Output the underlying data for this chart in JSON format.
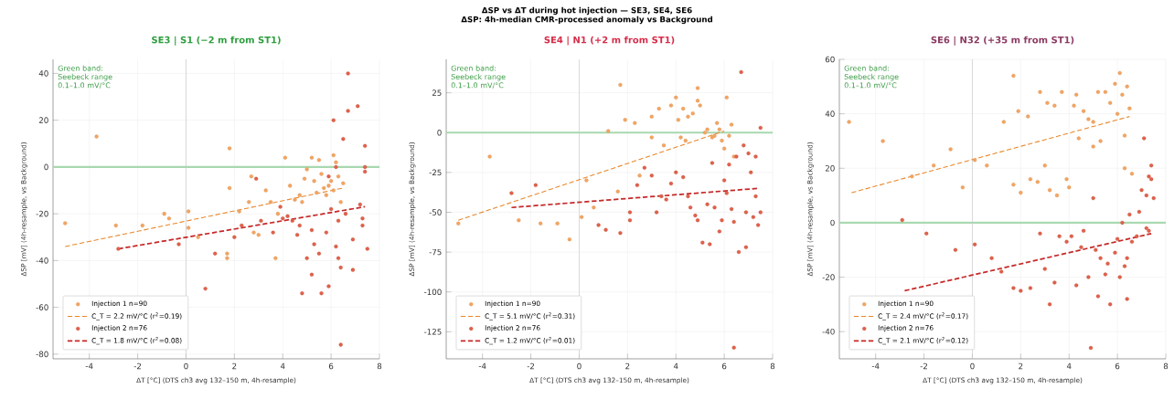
{
  "chart_data": [
    {
      "type": "scatter",
      "title": "SE3 | S1 (−2 m from ST1)",
      "xlabel": "ΔT [°C]  (DTS ch3 avg 132–150 m, 4h-resample)",
      "ylabel": "ΔSP [mV]  (4h-resample, vs Background)",
      "xlim": [
        -5.5,
        8
      ],
      "ylim": [
        -82,
        46
      ],
      "xticks": [
        -4,
        -2,
        0,
        2,
        4,
        6,
        8
      ],
      "yticks": [
        -80,
        -60,
        -40,
        -20,
        0,
        20,
        40
      ],
      "grid": true,
      "legend": "bottom left",
      "annotations": [
        "Green band: Seebeck range 0.1–1.0 mV/°C"
      ],
      "ref_lines": [
        {
          "axis": "y",
          "value": 0,
          "color": "#a8d8b0"
        },
        {
          "axis": "x",
          "value": 0,
          "color": "#c8c8c8"
        }
      ],
      "series": [
        {
          "name": "Injection 1  n=90",
          "marker": "circle",
          "color": "#f4a460",
          "x": [
            -5,
            -3.7,
            -2.9,
            -1.8,
            -0.9,
            -0.7,
            0.1,
            0.1,
            0.5,
            1.7,
            1.7,
            1.8,
            1.8,
            2.2,
            2.6,
            2.7,
            2.8,
            3.0,
            3.3,
            3.5,
            3.8,
            4.1,
            4.3,
            4.5,
            4.7,
            4.9,
            5.0,
            5.2,
            5.3,
            5.5,
            5.6,
            5.7,
            5.8,
            5.9,
            6.0,
            6.1,
            6.1,
            6.2,
            6.3,
            6.4,
            6.5,
            5.4,
            4.8,
            3.7
          ],
          "values": [
            -24,
            13,
            -25,
            -25,
            -20,
            -22,
            -19,
            -26,
            -30,
            -37,
            -39,
            8,
            -9,
            -19,
            -15,
            -4,
            -28,
            -29,
            -10,
            -15,
            -20,
            4,
            -8,
            -14,
            -12,
            -5,
            -1,
            4,
            -6,
            3,
            -3,
            -9,
            -12,
            -8,
            -6,
            5,
            -10,
            2,
            -4,
            -15,
            -7,
            -11,
            -15,
            -39
          ]
        },
        {
          "name": "C_T = 2.2 mV/°C  (r$^{2}$=0.19)",
          "type": "line",
          "color": "#e8862a",
          "line_style": "dashed",
          "x": [
            -5,
            6.5
          ],
          "values": [
            -34,
            -9
          ]
        },
        {
          "name": "Injection 2  n=76",
          "marker": "circle",
          "color": "#e0604a",
          "x": [
            -2.8,
            -0.3,
            0.8,
            1.2,
            2.0,
            2.3,
            2.9,
            3.1,
            3.6,
            3.9,
            4.0,
            4.2,
            4.4,
            4.6,
            4.7,
            4.8,
            5.0,
            5.2,
            5.2,
            5.3,
            5.5,
            5.6,
            5.8,
            5.9,
            6.0,
            6.1,
            6.2,
            6.3,
            6.4,
            6.4,
            6.5,
            6.6,
            6.7,
            6.7,
            6.9,
            6.9,
            7.1,
            7.2,
            7.3,
            7.4,
            7.4,
            7.4,
            7.5,
            7.3,
            6.3,
            6.2,
            5.9
          ],
          "values": [
            -35,
            -33,
            -52,
            -37,
            -30,
            -25,
            -5,
            -23,
            -28,
            -17,
            -22,
            -21,
            -23,
            -29,
            -25,
            -54,
            -39,
            -46,
            -27,
            -33,
            -37,
            -54,
            -28,
            -51,
            -18,
            20,
            -34,
            -23,
            -43,
            -76,
            12,
            -20,
            24,
            40,
            -44,
            -31,
            26,
            -16,
            -22,
            9,
            0,
            -2,
            -35,
            -25,
            -39,
            0,
            -4
          ]
        },
        {
          "name": "C_T = 1.8 mV/°C  (r$^{2}$=0.08)",
          "type": "line",
          "color": "#c62828",
          "line_style": "dashed",
          "x": [
            -2.8,
            7.4
          ],
          "values": [
            -35,
            -17
          ]
        }
      ]
    },
    {
      "type": "scatter",
      "title": "SE4 | N1 (+2 m from ST1)",
      "xlabel": "ΔT [°C]  (DTS ch3 avg 132–150 m, 4h-resample)",
      "ylabel": "ΔSP [mV]  (4h-resample, vs Background)",
      "xlim": [
        -5.5,
        8
      ],
      "ylim": [
        -142,
        46
      ],
      "xticks": [
        -4,
        -2,
        0,
        2,
        4,
        6,
        8
      ],
      "yticks": [
        -125,
        -100,
        -75,
        -50,
        -25,
        0,
        25
      ],
      "grid": true,
      "legend": "bottom left",
      "annotations": [
        "ΔSP vs ΔT during hot injection — SE3, SE4, SE6",
        "ΔSP: 4h-median CMR-processed anomaly vs Background",
        "Green band: Seebeck range 0.1–1.0 mV/°C"
      ],
      "ref_lines": [
        {
          "axis": "y",
          "value": 0,
          "color": "#a8d8b0"
        },
        {
          "axis": "x",
          "value": 0,
          "color": "#c8c8c8"
        }
      ],
      "series": [
        {
          "name": "Injection 1  n=90",
          "marker": "circle",
          "color": "#f4a460",
          "x": [
            -5,
            -3.7,
            -2.5,
            -1.6,
            -0.9,
            -0.4,
            0.1,
            0.3,
            0.6,
            1.2,
            1.6,
            1.7,
            1.9,
            2.3,
            2.5,
            3.0,
            3.0,
            3.3,
            3.5,
            3.8,
            4.0,
            4.1,
            4.3,
            4.4,
            4.5,
            4.7,
            4.9,
            4.9,
            5.0,
            5.2,
            5.3,
            5.5,
            5.7,
            5.8,
            5.9,
            6.0,
            6.1,
            6.2,
            6.3,
            6.4,
            5.6,
            4.2
          ],
          "values": [
            -57,
            -15,
            -55,
            -57,
            -57,
            -67,
            -53,
            -30,
            -47,
            1,
            -37,
            30,
            8,
            6,
            -27,
            10,
            -3,
            15,
            -8,
            17,
            22,
            8,
            15,
            -5,
            10,
            12,
            28,
            20,
            17,
            0,
            2,
            -3,
            6,
            2,
            -5,
            -10,
            22,
            -2,
            5,
            -15,
            -2,
            -3
          ]
        },
        {
          "name": "C_T = 5.1 mV/°C  (r$^{2}$=0.31)",
          "type": "line",
          "color": "#e8862a",
          "line_style": "dashed",
          "x": [
            -5,
            6
          ],
          "values": [
            -55,
            1
          ]
        },
        {
          "name": "Injection 2  n=76",
          "marker": "circle",
          "color": "#e0604a",
          "x": [
            -2.8,
            -1.8,
            0.8,
            1.1,
            1.7,
            2.1,
            2.1,
            2.4,
            2.7,
            3.0,
            3.2,
            3.4,
            3.6,
            3.8,
            4.0,
            4.3,
            4.5,
            4.6,
            4.8,
            4.9,
            5.1,
            5.3,
            5.4,
            5.5,
            5.6,
            5.8,
            5.9,
            6.0,
            6.1,
            6.2,
            6.3,
            6.4,
            6.4,
            6.5,
            6.6,
            6.7,
            6.8,
            6.9,
            6.9,
            7.0,
            7.1,
            7.2,
            7.3,
            7.4,
            7.5,
            7.5,
            7.3
          ],
          "values": [
            -38,
            -33,
            -58,
            -61,
            -63,
            -50,
            -55,
            -33,
            -22,
            -27,
            -50,
            -40,
            -42,
            -32,
            -25,
            -28,
            -40,
            -47,
            -52,
            -55,
            -69,
            -45,
            -70,
            -19,
            -47,
            -62,
            -55,
            -30,
            -38,
            -20,
            -48,
            -135,
            -56,
            -15,
            -75,
            38,
            -8,
            -50,
            -72,
            -13,
            -25,
            -53,
            -15,
            -58,
            3,
            -50,
            -40
          ]
        },
        {
          "name": "C_T = 1.2 mV/°C  (r$^{2}$=0.01)",
          "type": "line",
          "color": "#c62828",
          "line_style": "dashed",
          "x": [
            -2.8,
            7.4
          ],
          "values": [
            -47,
            -35
          ]
        }
      ]
    },
    {
      "type": "scatter",
      "title": "SE6 | N32 (+35 m from ST1)",
      "xlabel": "ΔT [°C]  (DTS ch3 avg 132–150 m, 4h-resample)",
      "ylabel": "ΔSP [mV]  (4h-resample, vs Background)",
      "xlim": [
        -5.5,
        8
      ],
      "ylim": [
        -50,
        60
      ],
      "xticks": [
        -4,
        -2,
        0,
        2,
        4,
        6,
        8
      ],
      "yticks": [
        -40,
        -20,
        0,
        20,
        40,
        60
      ],
      "grid": true,
      "legend": "bottom left",
      "annotations": [
        "Green band: Seebeck range 0.1–1.0 mV/°C"
      ],
      "ref_lines": [
        {
          "axis": "y",
          "value": 0,
          "color": "#a8d8b0"
        },
        {
          "axis": "x",
          "value": 0,
          "color": "#c8c8c8"
        }
      ],
      "series": [
        {
          "name": "Injection 1  n=90",
          "marker": "circle",
          "color": "#f4a460",
          "x": [
            -5.1,
            -3.7,
            -2.5,
            -1.6,
            -0.9,
            -0.4,
            0.1,
            0.6,
            1.3,
            1.7,
            1.7,
            1.9,
            2.0,
            2.3,
            2.4,
            2.7,
            2.8,
            3.0,
            3.1,
            3.2,
            3.4,
            3.5,
            3.7,
            3.9,
            4.0,
            4.2,
            4.3,
            4.4,
            4.6,
            4.8,
            5.0,
            5.0,
            5.2,
            5.3,
            5.5,
            5.7,
            5.9,
            6.0,
            6.1,
            6.2,
            6.3,
            6.4,
            6.5,
            6.3,
            6.6
          ],
          "values": [
            37,
            30,
            17,
            21,
            27,
            13,
            23,
            21,
            37,
            14,
            54,
            41,
            11,
            39,
            16,
            15,
            48,
            21,
            44,
            12,
            43,
            10,
            48,
            16,
            13,
            43,
            47,
            31,
            41,
            38,
            37,
            28,
            48,
            30,
            48,
            44,
            51,
            40,
            55,
            47,
            32,
            50,
            42,
            20,
            18
          ]
        },
        {
          "name": "C_T = 2.4 mV/°C  (r$^{2}$=0.17)",
          "type": "line",
          "color": "#e8862a",
          "line_style": "dashed",
          "x": [
            -5,
            6.5
          ],
          "values": [
            11,
            39
          ]
        },
        {
          "name": "Injection 2  n=76",
          "marker": "circle",
          "color": "#e0604a",
          "x": [
            -2.9,
            -1.9,
            -0.7,
            0.1,
            0.8,
            1.2,
            1.7,
            2.0,
            2.4,
            2.8,
            3.0,
            3.2,
            3.4,
            3.6,
            3.9,
            4.1,
            4.3,
            4.5,
            4.6,
            4.8,
            4.9,
            5.1,
            5.2,
            5.3,
            5.5,
            5.6,
            5.7,
            5.9,
            6.0,
            6.1,
            6.2,
            6.3,
            6.4,
            6.4,
            6.5,
            6.6,
            6.8,
            6.9,
            7.0,
            7.1,
            7.2,
            7.2,
            7.3,
            7.4,
            7.4,
            7.5,
            7.3,
            5.0
          ],
          "values": [
            1,
            -4,
            -10,
            -8,
            -13,
            -18,
            -24,
            -25,
            -24,
            -4,
            -17,
            -30,
            -22,
            -5,
            -7,
            -5,
            -23,
            -9,
            -3,
            -20,
            -46,
            -10,
            -27,
            -13,
            -19,
            -15,
            -30,
            -11,
            -6,
            -20,
            0,
            -16,
            -28,
            -13,
            3,
            -7,
            -5,
            4,
            12,
            31,
            10,
            -2,
            -3,
            16,
            21,
            9,
            17,
            9
          ]
        },
        {
          "name": "C_T = 2.1 mV/°C  (r$^{2}$=0.12)",
          "type": "line",
          "color": "#c62828",
          "line_style": "dashed",
          "x": [
            -2.8,
            7.4
          ],
          "values": [
            -25,
            -4
          ]
        }
      ]
    }
  ]
}
